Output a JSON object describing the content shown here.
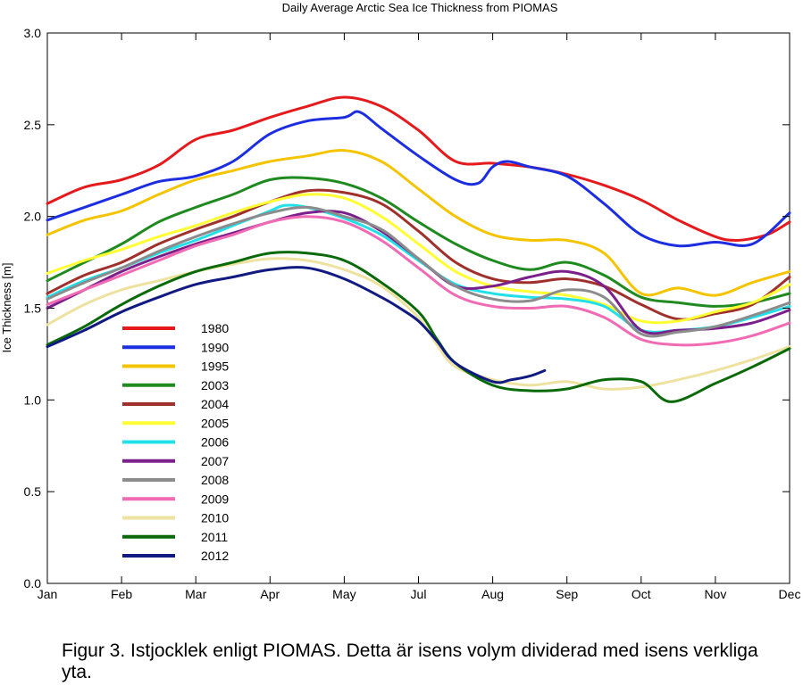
{
  "chart_data": {
    "type": "line",
    "title": "Daily Average Arctic Sea Ice Thickness from PIOMAS",
    "xlabel": "",
    "ylabel": "Ice Thickness  [m]",
    "ylim": [
      0,
      3.0
    ],
    "yticks": [
      "0.0",
      "0.5",
      "1.0",
      "1.5",
      "2.0",
      "2.5",
      "3.0"
    ],
    "months": [
      "Jan",
      "Feb",
      "Mar",
      "Apr",
      "May",
      "Jul",
      "Aug",
      "Sep",
      "Oct",
      "Nov",
      "Dec"
    ],
    "xlim": [
      0,
      10
    ],
    "grid": false,
    "legend_position": "lower-left",
    "series": [
      {
        "name": "1980",
        "color": "#e41a1c",
        "x": [
          0,
          0.5,
          1,
          1.5,
          2,
          2.5,
          3,
          3.5,
          4,
          4.5,
          5,
          5.5,
          6,
          6.5,
          7,
          7.5,
          8,
          8.5,
          9,
          9.25,
          9.5,
          9.75,
          10
        ],
        "values": [
          2.07,
          2.16,
          2.2,
          2.28,
          2.42,
          2.47,
          2.54,
          2.6,
          2.65,
          2.6,
          2.47,
          2.3,
          2.29,
          2.27,
          2.23,
          2.17,
          2.09,
          1.98,
          1.89,
          1.87,
          1.88,
          1.91,
          1.97
        ]
      },
      {
        "name": "1990",
        "color": "#1c2ee0",
        "x": [
          0,
          0.5,
          1,
          1.5,
          2,
          2.5,
          3,
          3.5,
          4,
          4.2,
          4.5,
          5,
          5.5,
          5.8,
          6,
          6.2,
          6.5,
          7,
          7.5,
          8,
          8.5,
          9,
          9.5,
          10
        ],
        "values": [
          1.98,
          2.05,
          2.12,
          2.19,
          2.22,
          2.3,
          2.45,
          2.52,
          2.54,
          2.57,
          2.48,
          2.33,
          2.2,
          2.18,
          2.27,
          2.3,
          2.27,
          2.22,
          2.07,
          1.9,
          1.84,
          1.86,
          1.85,
          2.02
        ]
      },
      {
        "name": "1995",
        "color": "#f5c400",
        "x": [
          0,
          0.5,
          1,
          1.5,
          2,
          2.5,
          3,
          3.5,
          4,
          4.5,
          5,
          5.5,
          6,
          6.5,
          7,
          7.5,
          8,
          8.5,
          9,
          9.5,
          10
        ],
        "values": [
          1.9,
          1.98,
          2.03,
          2.12,
          2.2,
          2.25,
          2.3,
          2.33,
          2.36,
          2.3,
          2.15,
          2.0,
          1.9,
          1.87,
          1.87,
          1.8,
          1.58,
          1.61,
          1.57,
          1.64,
          1.7
        ]
      },
      {
        "name": "2003",
        "color": "#1f8a1f",
        "x": [
          0,
          0.5,
          1,
          1.5,
          2,
          2.5,
          3,
          3.5,
          4,
          4.5,
          5,
          5.5,
          6,
          6.5,
          7,
          7.5,
          8,
          8.5,
          9,
          9.5,
          10
        ],
        "values": [
          1.65,
          1.75,
          1.85,
          1.97,
          2.05,
          2.12,
          2.2,
          2.21,
          2.18,
          2.1,
          1.97,
          1.85,
          1.76,
          1.71,
          1.75,
          1.68,
          1.56,
          1.53,
          1.51,
          1.53,
          1.58
        ]
      },
      {
        "name": "2004",
        "color": "#a0302c",
        "x": [
          0,
          0.5,
          1,
          1.5,
          2,
          2.5,
          3,
          3.5,
          4,
          4.5,
          5,
          5.5,
          6,
          6.5,
          7,
          7.5,
          8,
          8.5,
          9,
          9.5,
          10
        ],
        "values": [
          1.58,
          1.68,
          1.75,
          1.85,
          1.93,
          2.0,
          2.08,
          2.14,
          2.13,
          2.07,
          1.92,
          1.75,
          1.66,
          1.64,
          1.66,
          1.62,
          1.52,
          1.44,
          1.47,
          1.52,
          1.67
        ]
      },
      {
        "name": "2005",
        "color": "#ffff33",
        "x": [
          0,
          0.5,
          1,
          1.5,
          2,
          2.5,
          3,
          3.5,
          4,
          4.5,
          5,
          5.5,
          6,
          6.5,
          7,
          7.5,
          8,
          8.5,
          9,
          9.5,
          10
        ],
        "values": [
          1.69,
          1.76,
          1.82,
          1.89,
          1.95,
          2.02,
          2.08,
          2.12,
          2.1,
          2.0,
          1.85,
          1.7,
          1.62,
          1.59,
          1.57,
          1.52,
          1.43,
          1.43,
          1.48,
          1.53,
          1.63
        ]
      },
      {
        "name": "2006",
        "color": "#22e0e8",
        "x": [
          0,
          0.5,
          1,
          1.5,
          2,
          2.5,
          3,
          3.2,
          3.5,
          4,
          4.5,
          5,
          5.5,
          6,
          6.5,
          7,
          7.5,
          8,
          8.5,
          9,
          9.5,
          10
        ],
        "values": [
          1.56,
          1.65,
          1.72,
          1.8,
          1.87,
          1.95,
          2.03,
          2.06,
          2.05,
          1.99,
          1.9,
          1.76,
          1.63,
          1.58,
          1.56,
          1.55,
          1.51,
          1.38,
          1.38,
          1.4,
          1.45,
          1.51
        ]
      },
      {
        "name": "2007",
        "color": "#7b1f8a",
        "x": [
          0,
          0.5,
          1,
          1.5,
          2,
          2.5,
          3,
          3.5,
          4,
          4.5,
          5,
          5.5,
          6,
          6.5,
          7,
          7.5,
          8,
          8.5,
          9,
          9.5,
          10
        ],
        "values": [
          1.5,
          1.6,
          1.7,
          1.78,
          1.85,
          1.91,
          1.97,
          2.02,
          2.02,
          1.92,
          1.77,
          1.62,
          1.62,
          1.67,
          1.7,
          1.62,
          1.38,
          1.38,
          1.39,
          1.42,
          1.49
        ]
      },
      {
        "name": "2008",
        "color": "#8c8c8c",
        "x": [
          0,
          0.5,
          1,
          1.5,
          2,
          2.5,
          3,
          3.5,
          4,
          4.5,
          5,
          5.5,
          6,
          6.5,
          7,
          7.5,
          8,
          8.5,
          9,
          9.5,
          10
        ],
        "values": [
          1.55,
          1.64,
          1.72,
          1.81,
          1.89,
          1.96,
          2.02,
          2.05,
          2.0,
          1.93,
          1.77,
          1.62,
          1.55,
          1.54,
          1.6,
          1.56,
          1.36,
          1.37,
          1.4,
          1.46,
          1.53
        ]
      },
      {
        "name": "2009",
        "color": "#f06ab4",
        "x": [
          0,
          0.5,
          1,
          1.5,
          2,
          2.5,
          3,
          3.5,
          4,
          4.5,
          5,
          5.5,
          6,
          6.5,
          7,
          7.5,
          8,
          8.5,
          9,
          9.5,
          10
        ],
        "values": [
          1.52,
          1.6,
          1.68,
          1.76,
          1.84,
          1.9,
          1.97,
          2.0,
          1.97,
          1.87,
          1.72,
          1.57,
          1.51,
          1.5,
          1.51,
          1.45,
          1.33,
          1.3,
          1.31,
          1.35,
          1.42
        ]
      },
      {
        "name": "2010",
        "color": "#eee2a0",
        "x": [
          0,
          0.5,
          1,
          1.5,
          2,
          2.5,
          3,
          3.5,
          4,
          4.5,
          5,
          5.25,
          5.5,
          6,
          6.5,
          7,
          7.5,
          8,
          8.5,
          9,
          9.5,
          10
        ],
        "values": [
          1.41,
          1.52,
          1.6,
          1.65,
          1.7,
          1.74,
          1.77,
          1.76,
          1.71,
          1.62,
          1.45,
          1.3,
          1.18,
          1.11,
          1.08,
          1.1,
          1.06,
          1.07,
          1.11,
          1.16,
          1.22,
          1.29
        ]
      },
      {
        "name": "2011",
        "color": "#0a6a0a",
        "x": [
          0,
          0.5,
          1,
          1.5,
          2,
          2.5,
          3,
          3.5,
          4,
          4.5,
          5,
          5.25,
          5.5,
          6,
          6.5,
          7,
          7.5,
          8,
          8.4,
          9,
          9.5,
          10
        ],
        "values": [
          1.3,
          1.4,
          1.52,
          1.62,
          1.7,
          1.75,
          1.8,
          1.8,
          1.76,
          1.64,
          1.48,
          1.33,
          1.2,
          1.08,
          1.05,
          1.06,
          1.11,
          1.1,
          0.99,
          1.09,
          1.18,
          1.28
        ]
      },
      {
        "name": "2012",
        "color": "#101a80",
        "x": [
          0,
          0.5,
          1,
          1.5,
          2,
          2.5,
          3,
          3.5,
          4,
          4.5,
          4.75,
          5,
          5.25,
          5.5,
          6,
          6.25,
          6.5,
          6.7
        ],
        "values": [
          1.29,
          1.38,
          1.48,
          1.56,
          1.63,
          1.67,
          1.71,
          1.72,
          1.66,
          1.56,
          1.5,
          1.43,
          1.32,
          1.2,
          1.1,
          1.11,
          1.13,
          1.16
        ]
      }
    ]
  },
  "caption": "Figur 3. Istjocklek enligt PIOMAS. Detta är isens volym dividerad med isens verkliga yta."
}
